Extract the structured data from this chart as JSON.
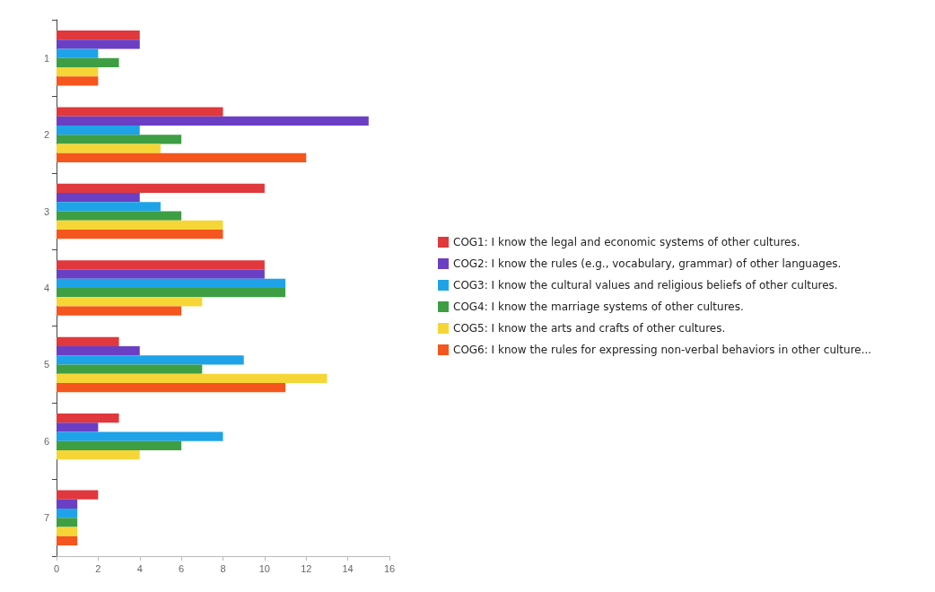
{
  "chart_data": {
    "type": "bar",
    "orientation": "horizontal",
    "categories": [
      "1",
      "2",
      "3",
      "4",
      "5",
      "6",
      "7"
    ],
    "series": [
      {
        "name": "COG1: I know the legal and economic systems of other cultures.",
        "color": "#e0383c",
        "values": [
          4,
          8,
          10,
          10,
          3,
          3,
          2
        ]
      },
      {
        "name": "COG2: I know the rules (e.g., vocabulary, grammar) of other languages.",
        "color": "#6b3fc4",
        "values": [
          4,
          15,
          4,
          10,
          4,
          2,
          1
        ]
      },
      {
        "name": "COG3: I know the cultural values and religious beliefs of other cultures.",
        "color": "#1ea3e8",
        "values": [
          2,
          4,
          5,
          11,
          9,
          8,
          1
        ]
      },
      {
        "name": "COG4: I know the marriage systems of other cultures.",
        "color": "#3e9e44",
        "values": [
          3,
          6,
          6,
          11,
          7,
          6,
          1
        ]
      },
      {
        "name": "COG5: I know the arts and crafts of other cultures.",
        "color": "#f6d637",
        "values": [
          2,
          5,
          8,
          7,
          13,
          4,
          1
        ]
      },
      {
        "name": "COG6: I know the rules for expressing non-verbal behaviors in other culture...",
        "color": "#f4561d",
        "values": [
          2,
          12,
          8,
          6,
          11,
          null,
          1
        ]
      }
    ],
    "xlim": [
      0,
      16
    ],
    "xticks": [
      0,
      2,
      4,
      6,
      8,
      10,
      12,
      14,
      16
    ],
    "grid": false,
    "legend": "right"
  }
}
